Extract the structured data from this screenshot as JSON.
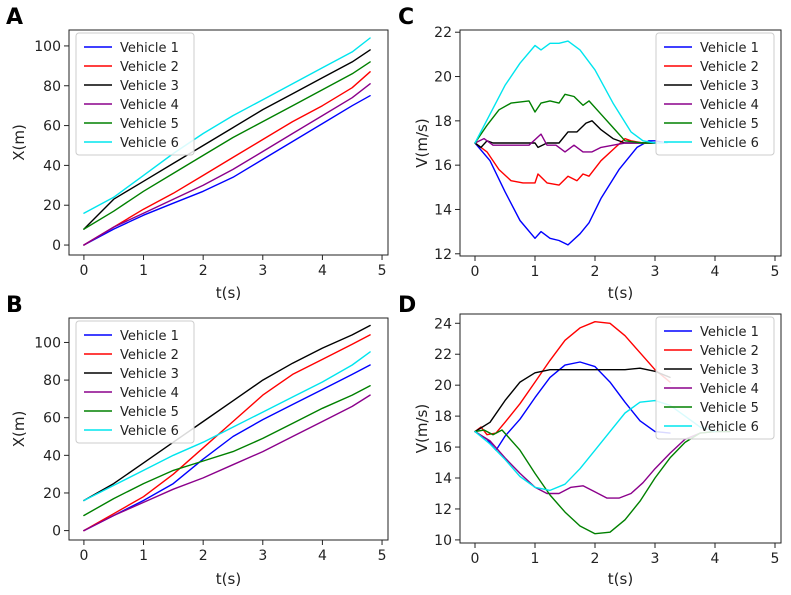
{
  "figure": {
    "colors": {
      "Vehicle 1": "#0000ff",
      "Vehicle 2": "#ff0000",
      "Vehicle 3": "#000000",
      "Vehicle 4": "#8b008b",
      "Vehicle 5": "#008000",
      "Vehicle 6": "#00e5ee"
    }
  },
  "chart_data": [
    {
      "panel": "A",
      "type": "line",
      "title": "",
      "xlabel": "t(s)",
      "ylabel": "X(m)",
      "xlim": [
        -0.25,
        5.1
      ],
      "ylim": [
        -5,
        108
      ],
      "xticks": [
        0,
        1,
        2,
        3,
        4,
        5
      ],
      "yticks": [
        0,
        20,
        40,
        60,
        80,
        100
      ],
      "legend_position": "top-left",
      "series": [
        {
          "name": "Vehicle 1",
          "x": [
            0,
            0.5,
            1,
            1.5,
            2,
            2.5,
            3,
            3.5,
            4,
            4.5,
            4.8
          ],
          "y": [
            0,
            8,
            15,
            21,
            27,
            34,
            43,
            52,
            61,
            70,
            75
          ]
        },
        {
          "name": "Vehicle 2",
          "x": [
            0,
            0.5,
            1,
            1.5,
            2,
            2.5,
            3,
            3.5,
            4,
            4.5,
            4.8
          ],
          "y": [
            0,
            9,
            18,
            26,
            35,
            44,
            53,
            62,
            70,
            79,
            87
          ]
        },
        {
          "name": "Vehicle 3",
          "x": [
            0,
            0.5,
            1,
            1.5,
            2,
            2.5,
            3,
            3.5,
            4,
            4.5,
            4.8
          ],
          "y": [
            8,
            23,
            32,
            41,
            50,
            59,
            68,
            76,
            84,
            92,
            98
          ]
        },
        {
          "name": "Vehicle 4",
          "x": [
            0,
            0.5,
            1,
            1.5,
            2,
            2.5,
            3,
            3.5,
            4,
            4.5,
            4.8
          ],
          "y": [
            0,
            9,
            16,
            23,
            30,
            38,
            47,
            56,
            65,
            74,
            81
          ]
        },
        {
          "name": "Vehicle 5",
          "x": [
            0,
            0.5,
            1,
            1.5,
            2,
            2.5,
            3,
            3.5,
            4,
            4.5,
            4.8
          ],
          "y": [
            8,
            17,
            27,
            36,
            45,
            54,
            62,
            70,
            78,
            86,
            92
          ]
        },
        {
          "name": "Vehicle 6",
          "x": [
            0,
            0.5,
            1,
            1.5,
            2,
            2.5,
            3,
            3.5,
            4,
            4.5,
            4.8
          ],
          "y": [
            16,
            24,
            35,
            46,
            56,
            65,
            73,
            81,
            89,
            97,
            104
          ]
        }
      ]
    },
    {
      "panel": "B",
      "type": "line",
      "title": "",
      "xlabel": "t(s)",
      "ylabel": "X(m)",
      "xlim": [
        -0.25,
        5.1
      ],
      "ylim": [
        -5,
        113
      ],
      "xticks": [
        0,
        1,
        2,
        3,
        4,
        5
      ],
      "yticks": [
        0,
        20,
        40,
        60,
        80,
        100
      ],
      "legend_position": "top-left",
      "series": [
        {
          "name": "Vehicle 1",
          "x": [
            0,
            0.5,
            1,
            1.5,
            2,
            2.5,
            3,
            3.5,
            4,
            4.5,
            4.8
          ],
          "y": [
            0,
            8,
            16,
            25,
            38,
            50,
            59,
            67,
            75,
            83,
            88
          ]
        },
        {
          "name": "Vehicle 2",
          "x": [
            0,
            0.5,
            1,
            1.5,
            2,
            2.5,
            3,
            3.5,
            4,
            4.5,
            4.8
          ],
          "y": [
            0,
            9,
            18,
            30,
            44,
            58,
            72,
            83,
            91,
            99,
            104
          ]
        },
        {
          "name": "Vehicle 3",
          "x": [
            0,
            0.5,
            1,
            1.5,
            2,
            2.5,
            3,
            3.5,
            4,
            4.5,
            4.8
          ],
          "y": [
            16,
            25,
            36,
            47,
            58,
            69,
            80,
            89,
            97,
            104,
            109
          ]
        },
        {
          "name": "Vehicle 4",
          "x": [
            0,
            0.5,
            1,
            1.5,
            2,
            2.5,
            3,
            3.5,
            4,
            4.5,
            4.8
          ],
          "y": [
            0,
            8,
            15,
            22,
            28,
            35,
            42,
            50,
            58,
            66,
            72
          ]
        },
        {
          "name": "Vehicle 5",
          "x": [
            0,
            0.5,
            1,
            1.5,
            2,
            2.5,
            3,
            3.5,
            4,
            4.5,
            4.8
          ],
          "y": [
            8,
            17,
            25,
            32,
            37,
            42,
            49,
            57,
            65,
            72,
            77
          ]
        },
        {
          "name": "Vehicle 6",
          "x": [
            0,
            0.5,
            1,
            1.5,
            2,
            2.5,
            3,
            3.5,
            4,
            4.5,
            4.8
          ],
          "y": [
            16,
            24,
            32,
            40,
            47,
            55,
            63,
            71,
            79,
            88,
            95
          ]
        }
      ]
    },
    {
      "panel": "C",
      "type": "line",
      "title": "",
      "xlabel": "t(s)",
      "ylabel": "V(m/s)",
      "xlim": [
        -0.25,
        5.1
      ],
      "ylim": [
        11.9,
        22.1
      ],
      "xticks": [
        0,
        1,
        2,
        3,
        4,
        5
      ],
      "yticks": [
        12,
        14,
        16,
        18,
        20,
        22
      ],
      "legend_position": "top-right",
      "series": [
        {
          "name": "Vehicle 1",
          "x": [
            0,
            0.25,
            0.5,
            0.75,
            1.0,
            1.1,
            1.25,
            1.4,
            1.55,
            1.75,
            1.9,
            2.1,
            2.4,
            2.7,
            2.9,
            3.0,
            3.2
          ],
          "y": [
            17,
            16.2,
            14.8,
            13.5,
            12.7,
            13.0,
            12.7,
            12.6,
            12.4,
            12.9,
            13.4,
            14.5,
            15.8,
            16.8,
            17.1,
            17.1,
            17.0
          ]
        },
        {
          "name": "Vehicle 2",
          "x": [
            0,
            0.2,
            0.4,
            0.6,
            0.8,
            1.0,
            1.05,
            1.2,
            1.4,
            1.55,
            1.7,
            1.8,
            1.9,
            2.1,
            2.3,
            2.5,
            2.6,
            2.8,
            3.0
          ],
          "y": [
            17,
            16.6,
            15.8,
            15.3,
            15.2,
            15.2,
            15.6,
            15.2,
            15.1,
            15.5,
            15.3,
            15.6,
            15.5,
            16.2,
            16.7,
            17.2,
            17.1,
            17.0,
            17.0
          ]
        },
        {
          "name": "Vehicle 3",
          "x": [
            0,
            0.1,
            0.2,
            0.3,
            0.5,
            1.0,
            1.05,
            1.2,
            1.4,
            1.55,
            1.7,
            1.85,
            1.95,
            2.1,
            2.3,
            2.5,
            3.0
          ],
          "y": [
            17,
            16.8,
            17.1,
            17.0,
            17.0,
            17.0,
            16.8,
            17.0,
            17.0,
            17.5,
            17.5,
            17.9,
            18.0,
            17.6,
            17.2,
            17.0,
            17.0
          ]
        },
        {
          "name": "Vehicle 4",
          "x": [
            0,
            0.15,
            0.3,
            0.6,
            0.9,
            1.1,
            1.2,
            1.35,
            1.5,
            1.65,
            1.8,
            1.95,
            2.1,
            2.3,
            2.5,
            2.7,
            3.0
          ],
          "y": [
            17,
            17.2,
            16.9,
            16.9,
            16.9,
            17.4,
            16.9,
            16.9,
            16.6,
            16.9,
            16.6,
            16.6,
            16.8,
            16.9,
            17.0,
            17.0,
            17.0
          ]
        },
        {
          "name": "Vehicle 5",
          "x": [
            0,
            0.2,
            0.4,
            0.6,
            0.9,
            1.0,
            1.1,
            1.25,
            1.4,
            1.5,
            1.65,
            1.8,
            1.9,
            2.1,
            2.3,
            2.5,
            2.8,
            3.0
          ],
          "y": [
            17,
            17.8,
            18.5,
            18.8,
            18.9,
            18.4,
            18.8,
            18.9,
            18.8,
            19.2,
            19.1,
            18.7,
            18.9,
            18.3,
            17.7,
            17.1,
            17.0,
            17.0
          ]
        },
        {
          "name": "Vehicle 6",
          "x": [
            0,
            0.25,
            0.5,
            0.75,
            1.0,
            1.1,
            1.25,
            1.4,
            1.55,
            1.75,
            2.0,
            2.3,
            2.6,
            2.8,
            3.0,
            3.2
          ],
          "y": [
            17,
            18.3,
            19.6,
            20.6,
            21.4,
            21.2,
            21.5,
            21.5,
            21.6,
            21.2,
            20.3,
            18.8,
            17.5,
            17.1,
            17.0,
            17.0
          ]
        }
      ]
    },
    {
      "panel": "D",
      "type": "line",
      "title": "",
      "xlabel": "t(s)",
      "ylabel": "V(m/s)",
      "xlim": [
        -0.25,
        5.1
      ],
      "ylim": [
        9.8,
        24.6
      ],
      "xticks": [
        0,
        1,
        2,
        3,
        4,
        5
      ],
      "yticks": [
        10,
        12,
        14,
        16,
        18,
        20,
        22,
        24
      ],
      "legend_position": "top-right",
      "series": [
        {
          "name": "Vehicle 1",
          "x": [
            0,
            0.2,
            0.35,
            0.5,
            0.75,
            1.0,
            1.25,
            1.5,
            1.75,
            2.0,
            2.25,
            2.5,
            2.75,
            3.0,
            3.25
          ],
          "y": [
            17,
            16.5,
            15.8,
            16.7,
            17.8,
            19.2,
            20.5,
            21.3,
            21.5,
            21.2,
            20.2,
            18.9,
            17.7,
            17.0,
            16.9
          ]
        },
        {
          "name": "Vehicle 2",
          "x": [
            0,
            0.1,
            0.2,
            0.35,
            0.5,
            0.75,
            1.0,
            1.25,
            1.5,
            1.75,
            2.0,
            2.25,
            2.5,
            2.75,
            3.0,
            3.25
          ],
          "y": [
            17,
            17.3,
            16.8,
            16.9,
            17.6,
            18.8,
            20.2,
            21.6,
            22.9,
            23.7,
            24.1,
            24.0,
            23.2,
            22.1,
            21.0,
            20.2
          ]
        },
        {
          "name": "Vehicle 3",
          "x": [
            0,
            0.25,
            0.5,
            0.75,
            1.0,
            1.25,
            1.5,
            2.0,
            2.5,
            2.75,
            3.0,
            3.25
          ],
          "y": [
            17,
            17.6,
            19.0,
            20.2,
            20.8,
            21.0,
            21.0,
            21.0,
            21.0,
            21.1,
            20.9,
            20.5
          ]
        },
        {
          "name": "Vehicle 4",
          "x": [
            0,
            0.25,
            0.5,
            0.75,
            1.0,
            1.2,
            1.4,
            1.6,
            1.8,
            2.0,
            2.2,
            2.4,
            2.6,
            2.8,
            3.0,
            3.25,
            3.5,
            3.75,
            4.0,
            4.25
          ],
          "y": [
            17,
            16.4,
            15.3,
            14.3,
            13.4,
            13.0,
            13.0,
            13.4,
            13.5,
            13.1,
            12.7,
            12.7,
            13.0,
            13.7,
            14.6,
            15.6,
            16.5,
            16.9,
            17.0,
            17.0
          ]
        },
        {
          "name": "Vehicle 5",
          "x": [
            0,
            0.15,
            0.3,
            0.45,
            0.75,
            1.0,
            1.25,
            1.5,
            1.75,
            2.0,
            2.25,
            2.5,
            2.75,
            3.0,
            3.25,
            3.5,
            3.75,
            4.0,
            4.25
          ],
          "y": [
            17,
            17.1,
            16.8,
            17.1,
            15.8,
            14.3,
            12.9,
            11.8,
            10.9,
            10.4,
            10.5,
            11.3,
            12.5,
            14.0,
            15.3,
            16.3,
            16.9,
            17.0,
            17.0
          ]
        },
        {
          "name": "Vehicle 6",
          "x": [
            0,
            0.25,
            0.5,
            0.75,
            1.0,
            1.25,
            1.5,
            1.75,
            2.0,
            2.25,
            2.5,
            2.75,
            3.0,
            3.25,
            3.5,
            3.75,
            4.0
          ],
          "y": [
            17,
            16.2,
            15.2,
            14.1,
            13.4,
            13.2,
            13.6,
            14.6,
            15.8,
            17.0,
            18.2,
            18.9,
            19.0,
            18.7,
            18.0,
            17.3,
            17.0
          ]
        }
      ]
    }
  ]
}
